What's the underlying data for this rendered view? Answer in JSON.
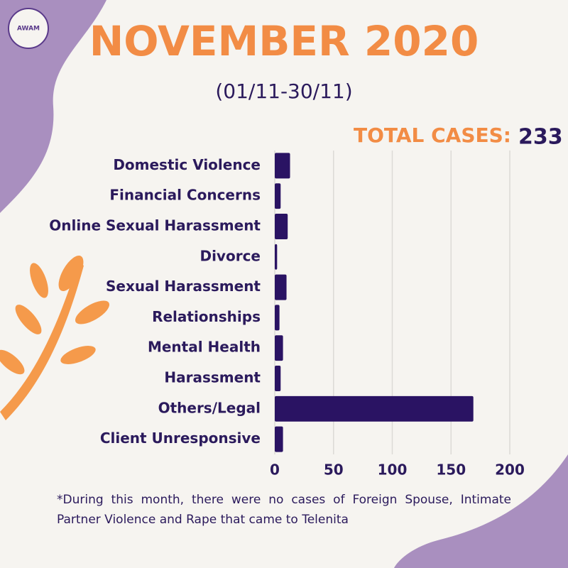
{
  "chart_data": {
    "type": "bar",
    "orientation": "horizontal",
    "title": "NOVEMBER 2020",
    "subtitle": "(01/11-30/11)",
    "total_label": "TOTAL CASES:",
    "total_value": 233,
    "logo": "AWAM",
    "categories": [
      "Domestic Violence",
      "Financial Concerns",
      "Online Sexual Harassment",
      "Divorce",
      "Sexual Harassment",
      "Relationships",
      "Mental Health",
      "Harassment",
      "Others/Legal",
      "Client Unresponsive"
    ],
    "values": [
      13,
      5,
      11,
      2,
      10,
      4,
      7,
      5,
      169,
      7
    ],
    "color": "#2a1363",
    "xlim": [
      0,
      200
    ],
    "xticks": [
      0,
      50,
      100,
      150,
      200
    ],
    "grid": true,
    "footnote": "*During this month, there were no cases of Foreign Spouse, Intimate Partner Violence and Rape that came to Telenita"
  }
}
